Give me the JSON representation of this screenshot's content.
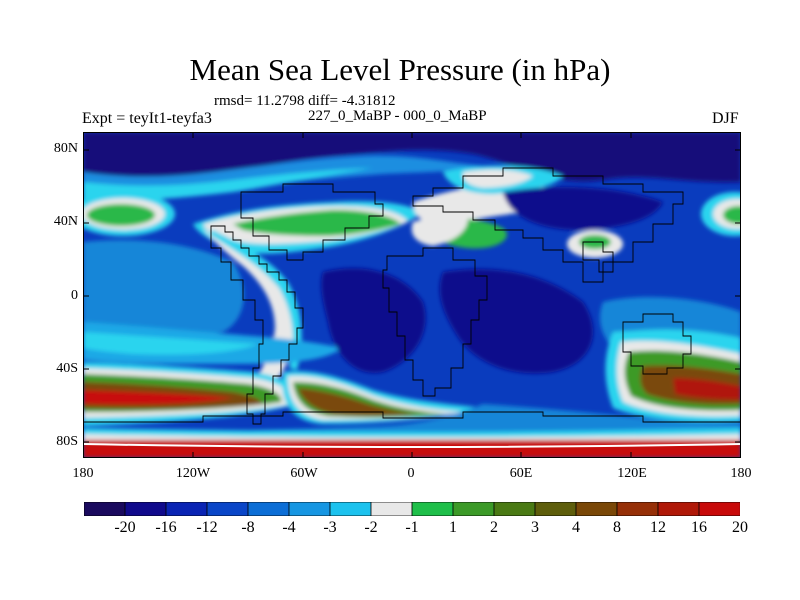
{
  "title": "Mean Sea Level Pressure (in hPa)",
  "stats": "rmsd= 11.2798 diff= -4.31812",
  "expt_label": "Expt = teyIt1-teyfa3",
  "subtitle": "227_0_MaBP - 000_0_MaBP",
  "season": "DJF",
  "lat_ticks": [
    "80N",
    "40N",
    "0",
    "40S",
    "80S"
  ],
  "lon_ticks": [
    "180",
    "120W",
    "60W",
    "0",
    "60E",
    "120E",
    "180"
  ],
  "colorbar": {
    "colors": [
      "#1a0a5e",
      "#100a8c",
      "#0a24b4",
      "#0a46c8",
      "#0c6ed6",
      "#1696e2",
      "#1cc2ee",
      "#e8e8e8",
      "#1fbf4a",
      "#3c9a28",
      "#4a7a14",
      "#5e5e0c",
      "#7a4808",
      "#963008",
      "#b01808",
      "#c80a0a"
    ],
    "labels": [
      "-20",
      "-16",
      "-12",
      "-8",
      "-4",
      "-3",
      "-2",
      "-1",
      "1",
      "2",
      "3",
      "4",
      "8",
      "12",
      "16",
      "20"
    ]
  }
}
